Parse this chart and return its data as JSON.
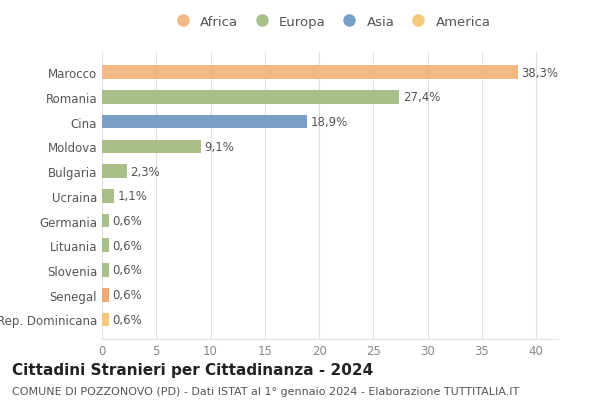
{
  "categories": [
    "Rep. Dominicana",
    "Senegal",
    "Slovenia",
    "Lituania",
    "Germania",
    "Ucraina",
    "Bulgaria",
    "Moldova",
    "Cina",
    "Romania",
    "Marocco"
  ],
  "values": [
    0.6,
    0.6,
    0.6,
    0.6,
    0.6,
    1.1,
    2.3,
    9.1,
    18.9,
    27.4,
    38.3
  ],
  "labels": [
    "0,6%",
    "0,6%",
    "0,6%",
    "0,6%",
    "0,6%",
    "1,1%",
    "2,3%",
    "9,1%",
    "18,9%",
    "27,4%",
    "38,3%"
  ],
  "colors": [
    "#f5c87a",
    "#f0a870",
    "#a8bf8a",
    "#a8bf8a",
    "#a8bf8a",
    "#a8bf8a",
    "#a8bf8a",
    "#a8bf8a",
    "#7b9ec7",
    "#a8bf8a",
    "#f0b985"
  ],
  "legend_labels": [
    "Africa",
    "Europa",
    "Asia",
    "America"
  ],
  "legend_colors": [
    "#f0b985",
    "#a8bf8a",
    "#7b9ec7",
    "#f5c87a"
  ],
  "title": "Cittadini Stranieri per Cittadinanza - 2024",
  "subtitle": "COMUNE DI POZZONOVO (PD) - Dati ISTAT al 1° gennaio 2024 - Elaborazione TUTTITALIA.IT",
  "xlim": [
    0,
    42
  ],
  "xticks": [
    0,
    5,
    10,
    15,
    20,
    25,
    30,
    35,
    40
  ],
  "background_color": "#ffffff",
  "grid_color": "#e0e0e0",
  "bar_height": 0.55,
  "title_fontsize": 11,
  "subtitle_fontsize": 8,
  "label_fontsize": 8.5,
  "tick_fontsize": 8.5,
  "legend_fontsize": 9.5
}
